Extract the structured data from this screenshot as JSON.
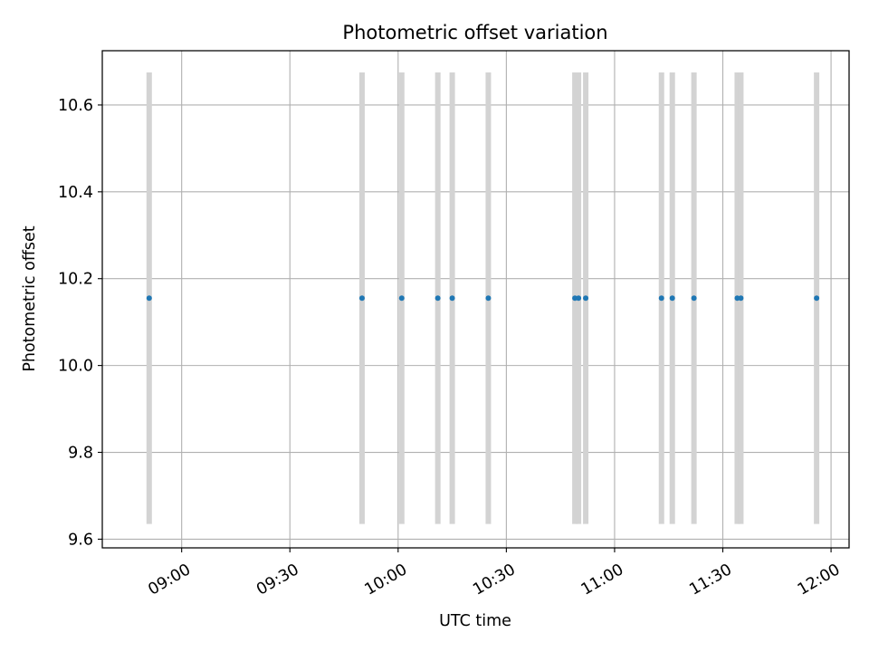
{
  "chart_data": {
    "type": "scatter",
    "title": "Photometric offset variation",
    "xlabel": "UTC time",
    "ylabel": "Photometric offset",
    "x_type": "time",
    "xlim": [
      "08:38",
      "12:05"
    ],
    "ylim": [
      9.58,
      10.725
    ],
    "x_ticks": [
      "09:00",
      "09:30",
      "10:00",
      "10:30",
      "11:00",
      "11:30",
      "12:00"
    ],
    "y_ticks": [
      9.6,
      9.8,
      10.0,
      10.2,
      10.4,
      10.6
    ],
    "y_tick_labels": [
      "9.6",
      "9.8",
      "10.0",
      "10.2",
      "10.4",
      "10.6"
    ],
    "grid": true,
    "colors": {
      "marker": "#1f77b4",
      "errorbar": "#d3d3d3",
      "grid": "#b0b0b0"
    },
    "series": [
      {
        "x": [
          "08:51",
          "09:50",
          "10:01",
          "10:11",
          "10:15",
          "10:25",
          "10:49",
          "10:50",
          "10:52",
          "11:13",
          "11:16",
          "11:22",
          "11:34",
          "11:35",
          "11:56"
        ],
        "y": [
          10.155,
          10.155,
          10.155,
          10.155,
          10.155,
          10.155,
          10.155,
          10.155,
          10.155,
          10.155,
          10.155,
          10.155,
          10.155,
          10.155,
          10.155
        ],
        "y_low": [
          9.635,
          9.635,
          9.635,
          9.635,
          9.635,
          9.635,
          9.635,
          9.635,
          9.635,
          9.635,
          9.635,
          9.635,
          9.635,
          9.635,
          9.635
        ],
        "y_high": [
          10.675,
          10.675,
          10.675,
          10.675,
          10.675,
          10.675,
          10.675,
          10.675,
          10.675,
          10.675,
          10.675,
          10.675,
          10.675,
          10.675,
          10.675
        ]
      }
    ]
  }
}
